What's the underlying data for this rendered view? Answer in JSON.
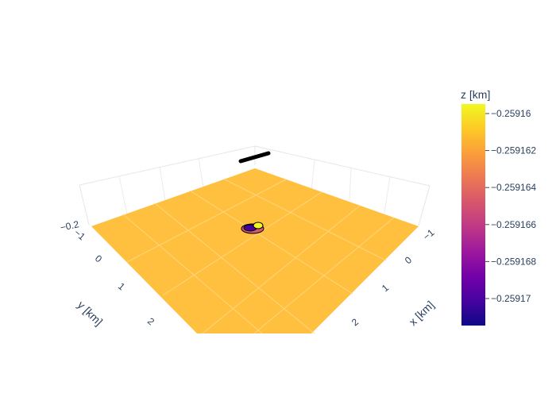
{
  "chart_data": {
    "type": "surface",
    "scene": {
      "x_axis": {
        "title": "x [km]",
        "ticks": [
          "−1",
          "0",
          "1",
          "2"
        ]
      },
      "y_axis": {
        "title": "y [km]",
        "ticks": [
          "−1",
          "0",
          "1",
          "2"
        ]
      },
      "z_axis": {
        "title": "",
        "ticks": [
          "−0.2"
        ]
      }
    },
    "surface": {
      "description_color": "#ffc040",
      "z_range": [
        -0.259171,
        -0.259159
      ]
    },
    "colorbar": {
      "title": "z [km]",
      "ticks": [
        "−0.25916",
        "−0.259162",
        "−0.259164",
        "−0.259166",
        "−0.259168",
        "−0.25917"
      ],
      "colorscale": [
        "#0d0887",
        "#46039f",
        "#7201a8",
        "#9c179e",
        "#bd3786",
        "#d8576b",
        "#ed7953",
        "#fb9f3a",
        "#fdca26",
        "#f0f921"
      ]
    }
  }
}
